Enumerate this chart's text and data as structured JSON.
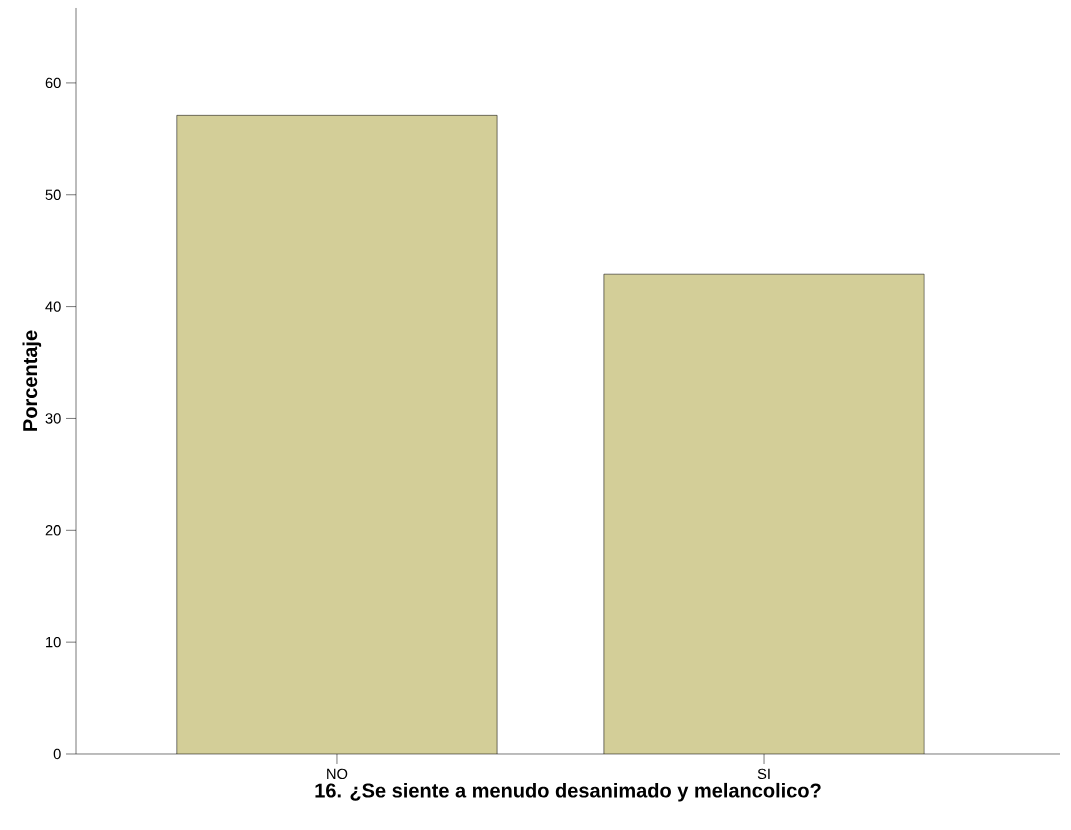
{
  "chart_data": {
    "type": "bar",
    "xlabel": "16. ¿Se siente a menudo desanimado y melancolico?",
    "ylabel": "Porcentaje",
    "categories": [
      "NO",
      "SI"
    ],
    "values": [
      57.1,
      42.9
    ],
    "color": "#d3ce98",
    "ylim": [
      0,
      66.7
    ],
    "yticks": [
      0,
      10,
      20,
      30,
      40,
      50,
      60
    ],
    "grid": false
  }
}
